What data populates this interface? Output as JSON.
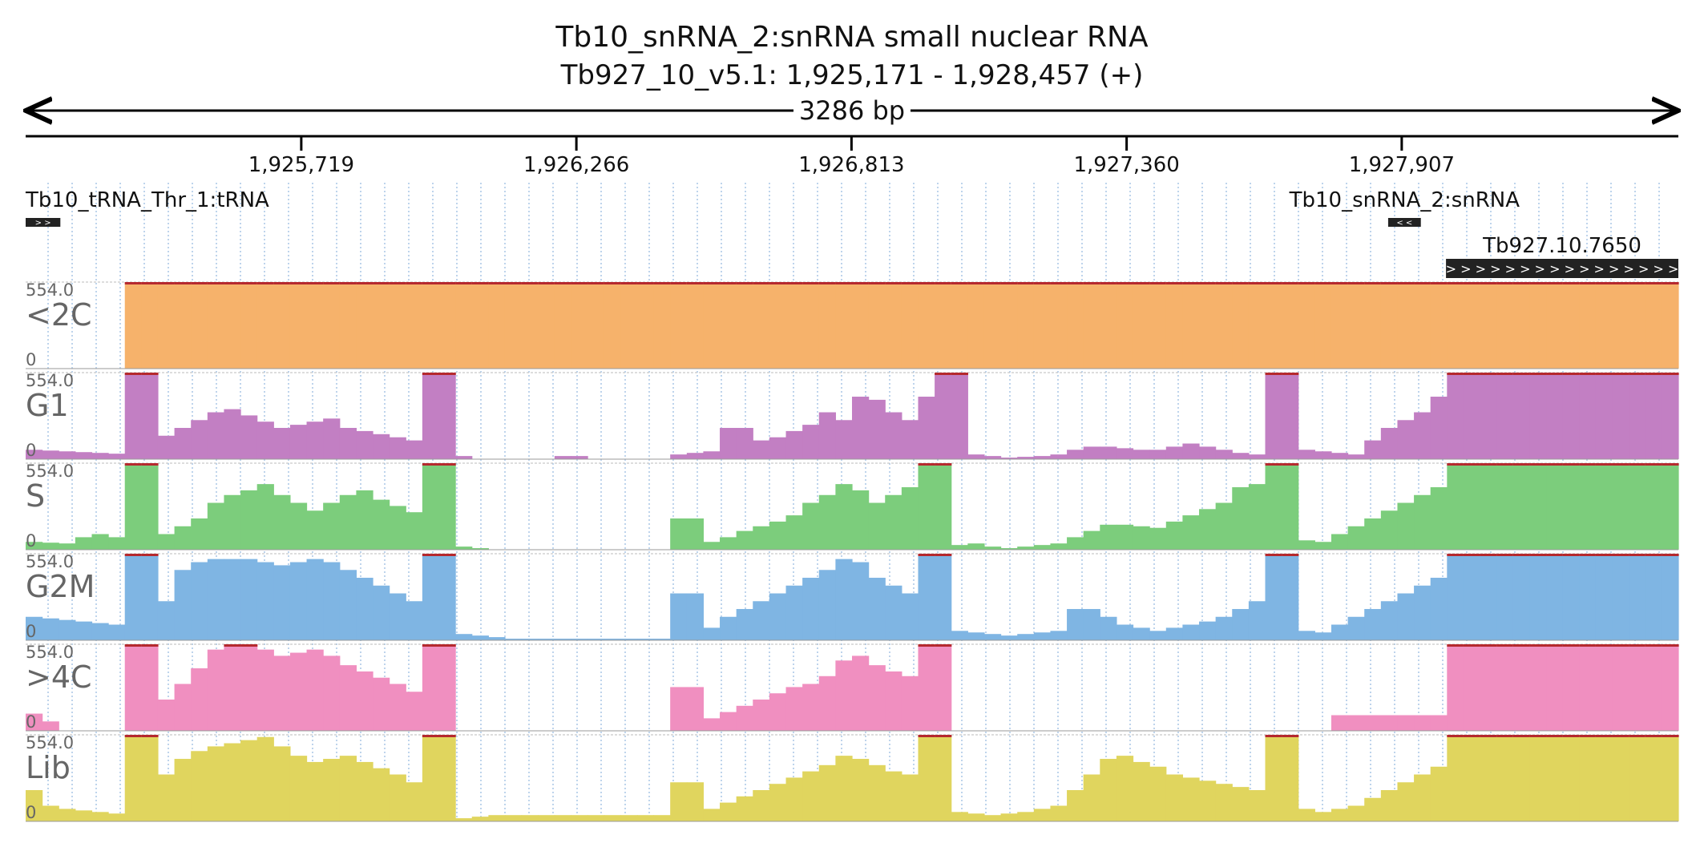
{
  "header": {
    "title": "Tb10_snRNA_2:snRNA  small nuclear RNA",
    "location": "Tb927_10_v5.1: 1,925,171 - 1,928,457 (+)",
    "span": "3286 bp"
  },
  "ruler": {
    "ticks": [
      "1,925,719",
      "1,926,266",
      "1,926,813",
      "1,927,360",
      "1,927,907"
    ]
  },
  "features": [
    {
      "label": "Tb10_tRNA_Thr_1:tRNA",
      "start": 1925171,
      "end": 1925240,
      "glyph": "> >"
    },
    {
      "label": "Tb10_snRNA_2:snRNA",
      "start": 1927880,
      "end": 1927945,
      "glyph": "< <"
    },
    {
      "label": "Tb927.10.7650",
      "start": 1927995,
      "end": 1928457,
      "glyph": "> > > > > > > > > > > > > > > > > >"
    }
  ],
  "colors": {
    "<2C": "#f6b26b",
    "G1": "#c27fc3",
    "S": "#7ccd7c",
    "G2M": "#7fb5e3",
    ">4C": "#f08fc0",
    "Lib": "#e0d55e",
    "clip": "#b5292e",
    "grid": "#7da9d8",
    "divider": "#bbbbbb"
  },
  "chart_data": {
    "type": "area",
    "x_start": 1925171,
    "x_end": 1928457,
    "bins": 100,
    "ylim": [
      0,
      554.0
    ],
    "tracks": [
      {
        "name": "<2C",
        "max_label": "554.0",
        "min_label": "0",
        "values": [
          0,
          0,
          0,
          0,
          0,
          0,
          554,
          554,
          554,
          554,
          554,
          554,
          554,
          554,
          554,
          554,
          554,
          554,
          554,
          554,
          554,
          554,
          554,
          554,
          554,
          554,
          554,
          554,
          554,
          554,
          554,
          554,
          554,
          554,
          554,
          554,
          554,
          554,
          554,
          554,
          554,
          554,
          554,
          554,
          554,
          554,
          554,
          554,
          554,
          554,
          554,
          554,
          554,
          554,
          554,
          554,
          554,
          554,
          554,
          554,
          554,
          554,
          554,
          554,
          554,
          554,
          554,
          554,
          554,
          554,
          554,
          554,
          554,
          554,
          554,
          554,
          554,
          554,
          554,
          554,
          554,
          554,
          554,
          554,
          554,
          554,
          554,
          554,
          554,
          554,
          554,
          554,
          554,
          554,
          554,
          554,
          554,
          554,
          554,
          554
        ]
      },
      {
        "name": "G1",
        "max_label": "554.0",
        "min_label": "0",
        "values": [
          60,
          55,
          50,
          45,
          40,
          35,
          554,
          554,
          150,
          200,
          250,
          300,
          320,
          280,
          240,
          200,
          220,
          240,
          260,
          200,
          180,
          160,
          140,
          120,
          554,
          554,
          20,
          0,
          0,
          0,
          0,
          0,
          20,
          20,
          0,
          0,
          0,
          0,
          0,
          30,
          40,
          50,
          200,
          200,
          120,
          140,
          180,
          220,
          300,
          250,
          400,
          380,
          300,
          250,
          400,
          554,
          554,
          30,
          20,
          10,
          15,
          20,
          30,
          60,
          80,
          80,
          70,
          60,
          60,
          80,
          100,
          80,
          60,
          40,
          30,
          554,
          554,
          60,
          50,
          40,
          30,
          120,
          200,
          250,
          300,
          400,
          554,
          554,
          554,
          554,
          554,
          554,
          554,
          554,
          554,
          554,
          554,
          554,
          554,
          554
        ]
      },
      {
        "name": "S",
        "max_label": "554.0",
        "min_label": "0",
        "values": [
          50,
          45,
          40,
          80,
          100,
          80,
          554,
          554,
          100,
          150,
          200,
          300,
          350,
          380,
          420,
          350,
          300,
          250,
          300,
          350,
          380,
          320,
          280,
          240,
          554,
          554,
          20,
          10,
          0,
          0,
          0,
          0,
          0,
          0,
          0,
          0,
          0,
          0,
          0,
          200,
          200,
          50,
          80,
          120,
          150,
          180,
          220,
          300,
          350,
          420,
          380,
          300,
          350,
          400,
          554,
          554,
          30,
          40,
          20,
          10,
          20,
          30,
          40,
          80,
          120,
          160,
          160,
          150,
          140,
          180,
          220,
          260,
          300,
          400,
          420,
          554,
          554,
          60,
          50,
          100,
          150,
          200,
          250,
          300,
          350,
          400,
          554,
          554,
          554,
          554,
          554,
          554,
          554,
          554,
          554,
          554,
          554,
          554,
          554,
          554
        ]
      },
      {
        "name": "G2M",
        "max_label": "554.0",
        "min_label": "0",
        "values": [
          150,
          140,
          130,
          120,
          110,
          100,
          554,
          554,
          250,
          450,
          500,
          520,
          520,
          520,
          500,
          480,
          500,
          520,
          500,
          450,
          400,
          350,
          300,
          250,
          554,
          554,
          40,
          30,
          20,
          10,
          10,
          10,
          10,
          10,
          10,
          10,
          10,
          10,
          10,
          300,
          300,
          80,
          150,
          200,
          250,
          300,
          350,
          400,
          450,
          520,
          500,
          400,
          350,
          300,
          554,
          554,
          60,
          50,
          40,
          30,
          40,
          50,
          60,
          200,
          200,
          150,
          100,
          80,
          60,
          80,
          100,
          120,
          150,
          200,
          250,
          554,
          554,
          60,
          50,
          100,
          150,
          200,
          250,
          300,
          350,
          400,
          554,
          554,
          554,
          554,
          554,
          554,
          554,
          554,
          554,
          554,
          554,
          554,
          554,
          554
        ]
      },
      {
        "name": ">4C",
        "max_label": "554.0",
        "min_label": "0",
        "values": [
          110,
          60,
          0,
          0,
          0,
          0,
          554,
          554,
          200,
          300,
          400,
          520,
          554,
          554,
          520,
          480,
          500,
          520,
          480,
          420,
          380,
          340,
          300,
          250,
          554,
          554,
          0,
          0,
          0,
          0,
          0,
          0,
          0,
          0,
          0,
          0,
          0,
          0,
          0,
          280,
          280,
          80,
          120,
          160,
          200,
          240,
          280,
          300,
          350,
          450,
          480,
          420,
          380,
          350,
          554,
          554,
          0,
          0,
          0,
          0,
          0,
          0,
          0,
          0,
          0,
          0,
          0,
          0,
          0,
          0,
          0,
          0,
          0,
          0,
          0,
          0,
          0,
          0,
          0,
          100,
          100,
          100,
          100,
          100,
          100,
          100,
          554,
          554,
          554,
          554,
          554,
          554,
          554,
          554,
          554,
          554,
          554,
          554,
          554,
          554
        ]
      },
      {
        "name": "Lib",
        "max_label": "554.0",
        "min_label": "0",
        "values": [
          200,
          100,
          80,
          70,
          60,
          50,
          554,
          554,
          300,
          400,
          450,
          480,
          500,
          520,
          540,
          480,
          420,
          380,
          400,
          420,
          380,
          340,
          300,
          250,
          554,
          554,
          20,
          30,
          40,
          40,
          40,
          40,
          40,
          40,
          40,
          40,
          40,
          40,
          40,
          250,
          250,
          80,
          120,
          160,
          200,
          240,
          280,
          320,
          360,
          420,
          400,
          360,
          320,
          300,
          554,
          554,
          60,
          50,
          40,
          50,
          60,
          80,
          100,
          200,
          300,
          400,
          420,
          380,
          350,
          300,
          280,
          260,
          240,
          220,
          200,
          554,
          554,
          80,
          60,
          80,
          100,
          150,
          200,
          250,
          300,
          350,
          554,
          554,
          554,
          554,
          554,
          554,
          554,
          554,
          554,
          554,
          554,
          554,
          554,
          554
        ]
      }
    ]
  }
}
